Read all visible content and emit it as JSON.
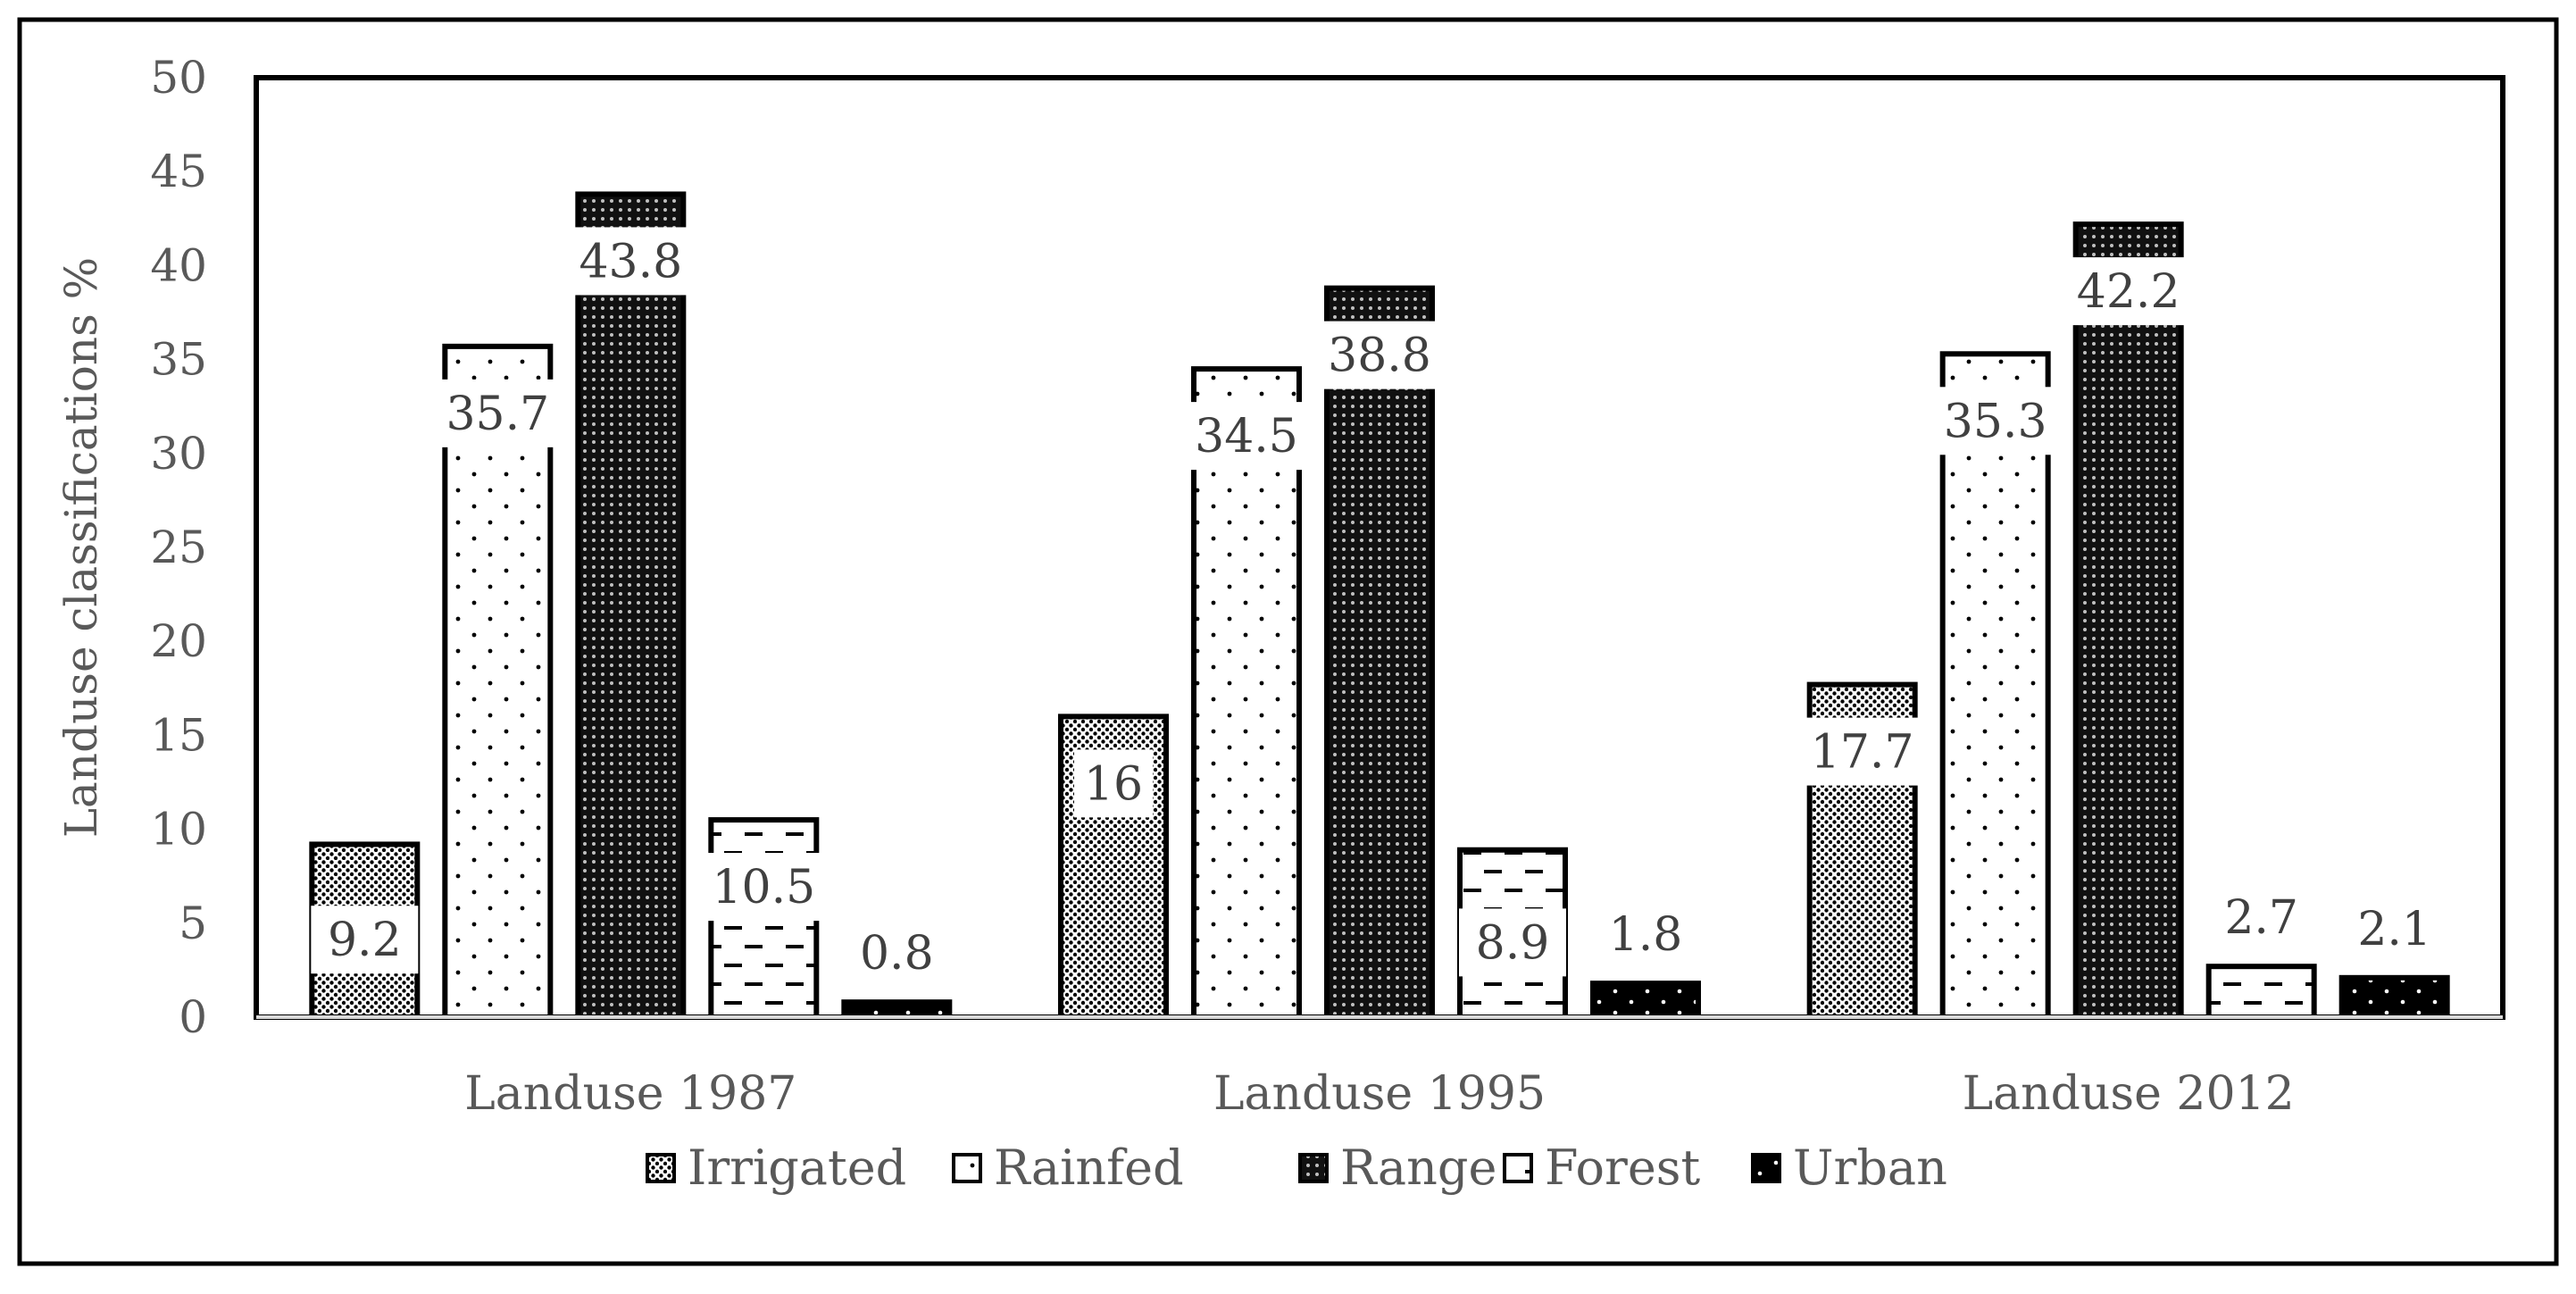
{
  "chart_data": {
    "type": "bar",
    "title": "",
    "xlabel": "",
    "ylabel": "Landuse classifications %",
    "ylim": [
      0,
      50
    ],
    "y_ticks": [
      "0",
      "5",
      "10",
      "15",
      "20",
      "25",
      "30",
      "35",
      "40",
      "45",
      "50"
    ],
    "categories": [
      "Landuse 1987",
      "Landuse 1995",
      "Landuse 2012"
    ],
    "legend_position": "bottom",
    "series": [
      {
        "name": "Irrigated",
        "pattern": "dense-dots",
        "values": [
          9.2,
          16,
          17.7
        ],
        "labels": [
          "9.2",
          "16",
          "17.7"
        ]
      },
      {
        "name": "Rainfed",
        "pattern": "sparse-dots",
        "values": [
          35.7,
          34.5,
          35.3
        ],
        "labels": [
          "35.7",
          "34.5",
          "35.3"
        ]
      },
      {
        "name": "Range",
        "pattern": "dark-grid",
        "values": [
          43.8,
          38.8,
          42.2
        ],
        "labels": [
          "43.8",
          "38.8",
          "42.2"
        ]
      },
      {
        "name": "Forest",
        "pattern": "dashes",
        "values": [
          10.5,
          8.9,
          2.7
        ],
        "labels": [
          "10.5",
          "8.9",
          "2.7"
        ]
      },
      {
        "name": "Urban",
        "pattern": "black-dots",
        "values": [
          0.8,
          1.8,
          2.1
        ],
        "labels": [
          "0.8",
          "1.8",
          "2.1"
        ]
      }
    ]
  },
  "colors": {
    "axis": "#d9d9d9",
    "frame": "#000000",
    "text": "#595959",
    "bar_outline": "#000000"
  }
}
